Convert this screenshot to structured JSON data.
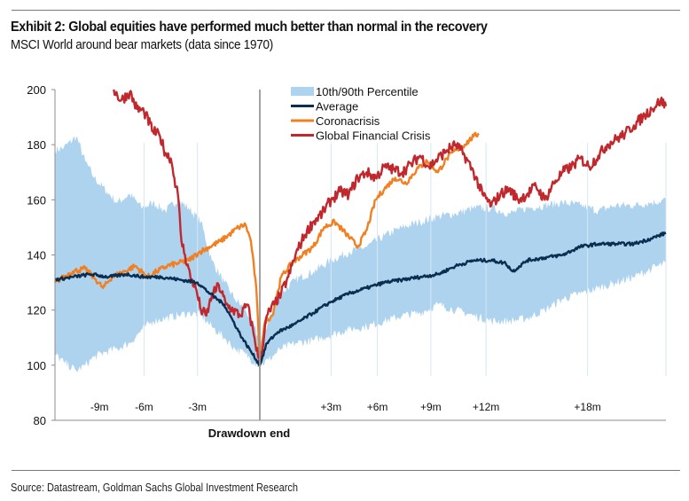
{
  "header": {
    "title": "Exhibit 2: Global equities have performed much better than normal in the recovery",
    "subtitle": "MSCI World around bear markets (data since 1970)"
  },
  "footer": {
    "source": "Source: Datastream, Goldman Sachs Global Investment Research"
  },
  "colors": {
    "band": "#aed3ef",
    "average": "#0b2d4f",
    "coronacrisis": "#f28021",
    "gfc": "#c0282d",
    "axis": "#8c8c8c",
    "grid_faint": "#dbe9f6"
  },
  "chart_data": {
    "type": "line",
    "title": "Exhibit 2: Global equities have performed much better than normal in the recovery",
    "subtitle": "MSCI World around bear markets (data since 1970)",
    "xlabel": "Drawdown end",
    "ylabel": "",
    "xlim": [
      -11.5,
      22.8
    ],
    "ylim": [
      80,
      200
    ],
    "yticks": [
      80,
      100,
      120,
      140,
      160,
      180,
      200
    ],
    "xticks": [
      {
        "value": -9,
        "label": "-9m"
      },
      {
        "value": -6.5,
        "label": "-6m"
      },
      {
        "value": -3.5,
        "label": "-3m"
      },
      {
        "value": 4,
        "label": "+3m"
      },
      {
        "value": 6.6,
        "label": "+6m"
      },
      {
        "value": 9.6,
        "label": "+9m"
      },
      {
        "value": 12.7,
        "label": "+12m"
      },
      {
        "value": 18.4,
        "label": "+18m"
      }
    ],
    "vline_at": 0,
    "grid": false,
    "legend": {
      "position": "top-center",
      "entries": [
        "10th/90th Percentile",
        "Average",
        "Coronacrisis",
        "Global Financial Crisis"
      ]
    },
    "band": {
      "name": "10th/90th Percentile",
      "x": [
        -11.5,
        -11.0,
        -10.3,
        -9.8,
        -9.3,
        -8.6,
        -8.0,
        -7.3,
        -6.6,
        -6.0,
        -5.3,
        -4.6,
        -4.0,
        -3.3,
        -2.7,
        -2.0,
        -1.4,
        -0.8,
        -0.3,
        0,
        0.5,
        1.2,
        2.0,
        3.0,
        4.0,
        5.0,
        6.0,
        7.0,
        8.0,
        9.0,
        10.0,
        11.0,
        12.0,
        13.0,
        14.0,
        15.0,
        16.0,
        17.0,
        18.0,
        19.0,
        20.0,
        21.0,
        22.0,
        22.8
      ],
      "upper": [
        178,
        179,
        183,
        174,
        168,
        163,
        159,
        162,
        157,
        159,
        156,
        160,
        157,
        152,
        138,
        130,
        124,
        120,
        114,
        108,
        116,
        126,
        131,
        134,
        138,
        141,
        143,
        147,
        150,
        152,
        154,
        155,
        157,
        157,
        155,
        157,
        158,
        159,
        158,
        156,
        158,
        158,
        159,
        160
      ],
      "lower": [
        104,
        101,
        98,
        100,
        103,
        105,
        106,
        108,
        113,
        116,
        117,
        118,
        119,
        118,
        114,
        110,
        106,
        104,
        101,
        100,
        102,
        106,
        108,
        109,
        111,
        113,
        114,
        116,
        118,
        119,
        122,
        120,
        118,
        116,
        116,
        117,
        120,
        124,
        126,
        128,
        130,
        132,
        135,
        137
      ]
    },
    "series": [
      {
        "name": "Average",
        "x": [
          -11.5,
          -10.5,
          -9.5,
          -8.5,
          -7.5,
          -6.5,
          -5.5,
          -4.5,
          -3.5,
          -2.8,
          -2.0,
          -1.5,
          -1.0,
          -0.5,
          0,
          0.4,
          1.0,
          2.0,
          3.0,
          4.0,
          5.0,
          6.0,
          7.0,
          8.0,
          9.0,
          10.0,
          11.0,
          12.0,
          13.0,
          13.8,
          14.2,
          15.0,
          16.0,
          17.0,
          18.0,
          19.0,
          20.0,
          21.0,
          22.0,
          22.8
        ],
        "values": [
          131,
          132,
          133,
          132,
          133,
          132,
          132,
          131,
          130,
          126,
          122,
          116,
          110,
          105,
          100,
          108,
          112,
          115,
          119,
          123,
          126,
          128,
          130,
          131,
          132,
          133,
          136,
          138,
          138,
          137,
          134,
          138,
          139,
          140,
          143,
          144,
          144,
          144,
          146,
          148
        ]
      },
      {
        "name": "Coronacrisis",
        "x": [
          -11.5,
          -10.5,
          -9.8,
          -9.2,
          -8.8,
          -8.3,
          -7.6,
          -7.0,
          -6.3,
          -5.8,
          -5.2,
          -4.6,
          -4.0,
          -3.4,
          -2.8,
          -2.2,
          -1.6,
          -1.2,
          -0.8,
          -0.5,
          -0.2,
          0,
          0.3,
          0.7,
          1.2,
          1.8,
          2.4,
          3.0,
          3.6,
          4.2,
          4.8,
          5.5,
          6.0,
          6.5,
          7.0,
          7.6,
          8.2,
          8.8,
          9.4,
          10.0,
          10.5,
          11.0,
          11.5,
          12.0,
          12.3
        ],
        "values": [
          130,
          134,
          135,
          131,
          128,
          132,
          134,
          136,
          132,
          134,
          136,
          137,
          138,
          141,
          143,
          145,
          148,
          150,
          151,
          145,
          128,
          102,
          116,
          118,
          132,
          137,
          140,
          143,
          150,
          152,
          148,
          143,
          149,
          160,
          164,
          168,
          166,
          171,
          174,
          170,
          175,
          178,
          180,
          183,
          184
        ]
      },
      {
        "name": "Global Financial Crisis",
        "x": [
          -8.2,
          -7.8,
          -7.3,
          -6.9,
          -6.5,
          -6.0,
          -5.6,
          -5.3,
          -5.0,
          -4.8,
          -4.6,
          -4.4,
          -4.2,
          -3.9,
          -3.6,
          -3.3,
          -3.0,
          -2.7,
          -2.3,
          -1.9,
          -1.5,
          -1.1,
          -0.7,
          -0.3,
          0,
          0.4,
          0.8,
          1.2,
          1.6,
          2.0,
          2.5,
          3.0,
          3.5,
          4.0,
          4.5,
          5.0,
          5.5,
          6.0,
          6.5,
          7.0,
          7.5,
          8.0,
          8.5,
          9.0,
          9.5,
          10.0,
          10.5,
          11.0,
          11.5,
          12.0,
          12.5,
          13.0,
          13.5,
          14.0,
          14.5,
          15.0,
          15.5,
          16.0,
          16.5,
          17.0,
          17.5,
          18.0,
          18.5,
          19.0,
          19.5,
          20.0,
          20.5,
          21.0,
          21.5,
          22.0,
          22.5,
          22.8
        ],
        "values": [
          200,
          196,
          199,
          193,
          192,
          185,
          183,
          177,
          175,
          168,
          162,
          145,
          140,
          132,
          128,
          120,
          118,
          125,
          129,
          122,
          120,
          118,
          122,
          110,
          100,
          118,
          122,
          126,
          132,
          140,
          147,
          152,
          155,
          160,
          163,
          162,
          168,
          170,
          168,
          172,
          171,
          170,
          173,
          176,
          172,
          175,
          178,
          180,
          176,
          170,
          162,
          158,
          162,
          164,
          160,
          162,
          165,
          160,
          166,
          170,
          172,
          175,
          172,
          176,
          180,
          182,
          184,
          187,
          190,
          193,
          196,
          194
        ]
      }
    ]
  }
}
